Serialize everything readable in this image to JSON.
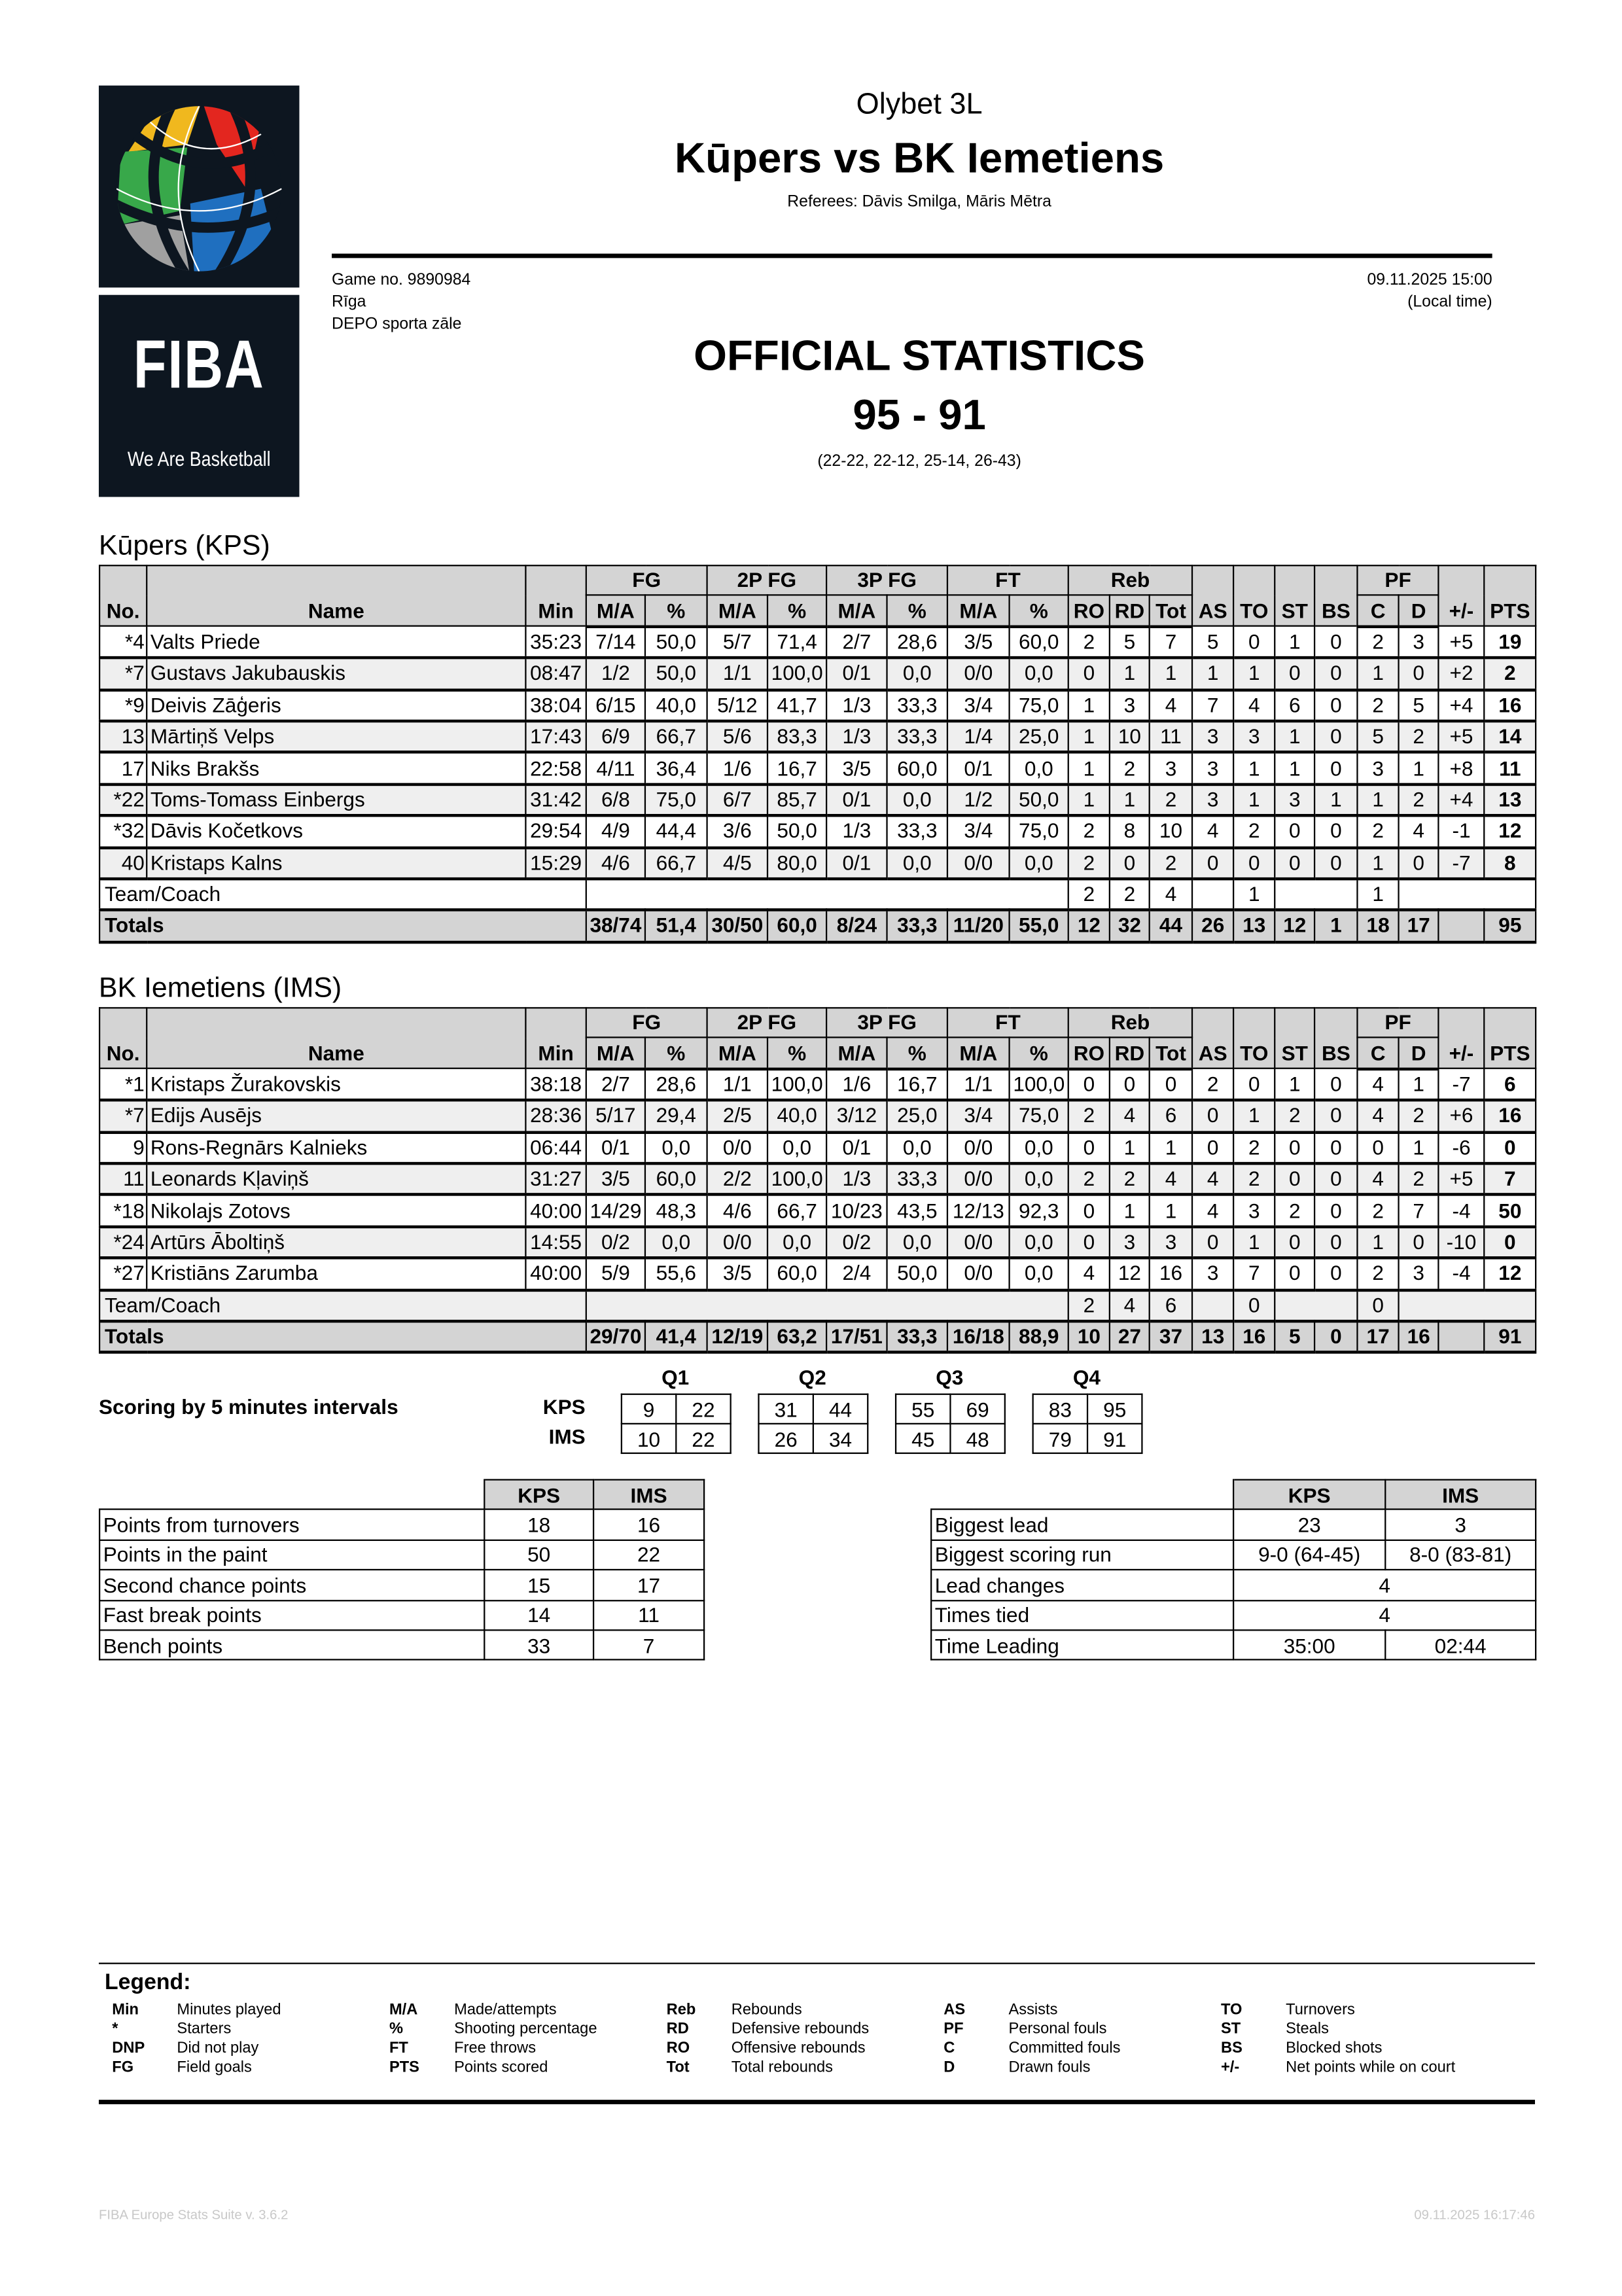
{
  "header": {
    "competition": "Olybet 3L",
    "title": "Kūpers vs BK Iemetiens",
    "referees": "Referees: Dāvis Smilga, Māris Mētra",
    "game_no": "Game no. 9890984",
    "city": "Rīga",
    "venue": "DEPO sporta zāle",
    "datetime": "09.11.2025 15:00",
    "local_time": "(Local time)",
    "doc_title": "OFFICIAL STATISTICS",
    "final_score": "95 - 91",
    "quarter_scores": "(22-22, 22-12, 25-14, 26-43)"
  },
  "logo": {
    "word": "FIBA",
    "tagline": "We Are Basketball",
    "bg": "#0d1620"
  },
  "table_header": {
    "groups": [
      "FG",
      "2P FG",
      "3P FG",
      "FT",
      "Reb",
      "PF"
    ],
    "columns": [
      "No.",
      "Name",
      "Min",
      "M/A",
      "%",
      "M/A",
      "%",
      "M/A",
      "%",
      "M/A",
      "%",
      "RO",
      "RD",
      "Tot",
      "AS",
      "TO",
      "ST",
      "BS",
      "C",
      "D",
      "+/-",
      "PTS"
    ]
  },
  "teams": [
    {
      "title": "Kūpers (KPS)",
      "players": [
        [
          "*4",
          "Valts Priede",
          "35:23",
          "7/14",
          "50,0",
          "5/7",
          "71,4",
          "2/7",
          "28,6",
          "3/5",
          "60,0",
          "2",
          "5",
          "7",
          "5",
          "0",
          "1",
          "0",
          "2",
          "3",
          "+5",
          "19"
        ],
        [
          "*7",
          "Gustavs Jakubauskis",
          "08:47",
          "1/2",
          "50,0",
          "1/1",
          "100,0",
          "0/1",
          "0,0",
          "0/0",
          "0,0",
          "0",
          "1",
          "1",
          "1",
          "1",
          "0",
          "0",
          "1",
          "0",
          "+2",
          "2"
        ],
        [
          "*9",
          "Deivis Zāģeris",
          "38:04",
          "6/15",
          "40,0",
          "5/12",
          "41,7",
          "1/3",
          "33,3",
          "3/4",
          "75,0",
          "1",
          "3",
          "4",
          "7",
          "4",
          "6",
          "0",
          "2",
          "5",
          "+4",
          "16"
        ],
        [
          "13",
          "Mārtiņš Velps",
          "17:43",
          "6/9",
          "66,7",
          "5/6",
          "83,3",
          "1/3",
          "33,3",
          "1/4",
          "25,0",
          "1",
          "10",
          "11",
          "3",
          "3",
          "1",
          "0",
          "5",
          "2",
          "+5",
          "14"
        ],
        [
          "17",
          "Niks Brakšs",
          "22:58",
          "4/11",
          "36,4",
          "1/6",
          "16,7",
          "3/5",
          "60,0",
          "0/1",
          "0,0",
          "1",
          "2",
          "3",
          "3",
          "1",
          "1",
          "0",
          "3",
          "1",
          "+8",
          "11"
        ],
        [
          "*22",
          "Toms-Tomass Einbergs",
          "31:42",
          "6/8",
          "75,0",
          "6/7",
          "85,7",
          "0/1",
          "0,0",
          "1/2",
          "50,0",
          "1",
          "1",
          "2",
          "3",
          "1",
          "3",
          "1",
          "1",
          "2",
          "+4",
          "13"
        ],
        [
          "*32",
          "Dāvis Kočetkovs",
          "29:54",
          "4/9",
          "44,4",
          "3/6",
          "50,0",
          "1/3",
          "33,3",
          "3/4",
          "75,0",
          "2",
          "8",
          "10",
          "4",
          "2",
          "0",
          "0",
          "2",
          "4",
          "-1",
          "12"
        ],
        [
          "40",
          "Kristaps Kalns",
          "15:29",
          "4/6",
          "66,7",
          "4/5",
          "80,0",
          "0/1",
          "0,0",
          "0/0",
          "0,0",
          "2",
          "0",
          "2",
          "0",
          "0",
          "0",
          "0",
          "1",
          "0",
          "-7",
          "8"
        ]
      ],
      "team_row": {
        "label": "Team/Coach",
        "ro": "2",
        "rd": "2",
        "tot": "4",
        "to": "1",
        "c": "1"
      },
      "totals": {
        "label": "Totals",
        "values": [
          "38/74",
          "51,4",
          "30/50",
          "60,0",
          "8/24",
          "33,3",
          "11/20",
          "55,0",
          "12",
          "32",
          "44",
          "26",
          "13",
          "12",
          "1",
          "18",
          "17",
          "",
          "95"
        ]
      }
    },
    {
      "title": "BK Iemetiens (IMS)",
      "players": [
        [
          "*1",
          "Kristaps Žurakovskis",
          "38:18",
          "2/7",
          "28,6",
          "1/1",
          "100,0",
          "1/6",
          "16,7",
          "1/1",
          "100,0",
          "0",
          "0",
          "0",
          "2",
          "0",
          "1",
          "0",
          "4",
          "1",
          "-7",
          "6"
        ],
        [
          "*7",
          "Edijs Ausējs",
          "28:36",
          "5/17",
          "29,4",
          "2/5",
          "40,0",
          "3/12",
          "25,0",
          "3/4",
          "75,0",
          "2",
          "4",
          "6",
          "0",
          "1",
          "2",
          "0",
          "4",
          "2",
          "+6",
          "16"
        ],
        [
          "9",
          "Rons-Regnārs Kalnieks",
          "06:44",
          "0/1",
          "0,0",
          "0/0",
          "0,0",
          "0/1",
          "0,0",
          "0/0",
          "0,0",
          "0",
          "1",
          "1",
          "0",
          "2",
          "0",
          "0",
          "0",
          "1",
          "-6",
          "0"
        ],
        [
          "11",
          "Leonards Kļaviņš",
          "31:27",
          "3/5",
          "60,0",
          "2/2",
          "100,0",
          "1/3",
          "33,3",
          "0/0",
          "0,0",
          "2",
          "2",
          "4",
          "4",
          "2",
          "0",
          "0",
          "4",
          "2",
          "+5",
          "7"
        ],
        [
          "*18",
          "Nikolajs Zotovs",
          "40:00",
          "14/29",
          "48,3",
          "4/6",
          "66,7",
          "10/23",
          "43,5",
          "12/13",
          "92,3",
          "0",
          "1",
          "1",
          "4",
          "3",
          "2",
          "0",
          "2",
          "7",
          "-4",
          "50"
        ],
        [
          "*24",
          "Artūrs Āboltiņš",
          "14:55",
          "0/2",
          "0,0",
          "0/0",
          "0,0",
          "0/2",
          "0,0",
          "0/0",
          "0,0",
          "0",
          "3",
          "3",
          "0",
          "1",
          "0",
          "0",
          "1",
          "0",
          "-10",
          "0"
        ],
        [
          "*27",
          "Kristiāns Zarumba",
          "40:00",
          "5/9",
          "55,6",
          "3/5",
          "60,0",
          "2/4",
          "50,0",
          "0/0",
          "0,0",
          "4",
          "12",
          "16",
          "3",
          "7",
          "0",
          "0",
          "2",
          "3",
          "-4",
          "12"
        ]
      ],
      "team_row": {
        "label": "Team/Coach",
        "ro": "2",
        "rd": "4",
        "tot": "6",
        "to": "0",
        "c": "0"
      },
      "totals": {
        "label": "Totals",
        "values": [
          "29/70",
          "41,4",
          "12/19",
          "63,2",
          "17/51",
          "33,3",
          "16/18",
          "88,9",
          "10",
          "27",
          "37",
          "13",
          "16",
          "5",
          "0",
          "17",
          "16",
          "",
          "91"
        ]
      }
    }
  ],
  "scoring": {
    "label": "Scoring by 5 minutes intervals",
    "quarters": [
      "Q1",
      "Q2",
      "Q3",
      "Q4"
    ],
    "teams": [
      {
        "code": "KPS",
        "values": [
          "9",
          "22",
          "31",
          "44",
          "55",
          "69",
          "83",
          "95"
        ]
      },
      {
        "code": "IMS",
        "values": [
          "10",
          "22",
          "26",
          "34",
          "45",
          "48",
          "79",
          "91"
        ]
      }
    ]
  },
  "points_table": {
    "headers": [
      "KPS",
      "IMS"
    ],
    "rows": [
      [
        "Points from turnovers",
        "18",
        "16"
      ],
      [
        "Points in the paint",
        "50",
        "22"
      ],
      [
        "Second chance points",
        "15",
        "17"
      ],
      [
        "Fast break points",
        "14",
        "11"
      ],
      [
        "Bench points",
        "33",
        "7"
      ]
    ]
  },
  "lead_table": {
    "headers": [
      "KPS",
      "IMS"
    ],
    "rows": [
      [
        "Biggest lead",
        "23",
        "3"
      ],
      [
        "Biggest scoring run",
        "9-0 (64-45)",
        "8-0 (83-81)"
      ],
      [
        "Lead changes",
        "4"
      ],
      [
        "Times tied",
        "4"
      ],
      [
        "Time Leading",
        "35:00",
        "02:44"
      ]
    ]
  },
  "legend": {
    "title": "Legend:",
    "columns": [
      [
        [
          "Min",
          "Minutes played"
        ],
        [
          "*",
          "Starters"
        ],
        [
          "DNP",
          "Did not play"
        ],
        [
          "FG",
          "Field goals"
        ]
      ],
      [
        [
          "M/A",
          "Made/attempts"
        ],
        [
          "%",
          "Shooting percentage"
        ],
        [
          "FT",
          "Free throws"
        ],
        [
          "PTS",
          "Points scored"
        ]
      ],
      [
        [
          "Reb",
          "Rebounds"
        ],
        [
          "RD",
          "Defensive rebounds"
        ],
        [
          "RO",
          "Offensive rebounds"
        ],
        [
          "Tot",
          "Total rebounds"
        ]
      ],
      [
        [
          "AS",
          "Assists"
        ],
        [
          "PF",
          "Personal fouls"
        ],
        [
          "C",
          "Committed fouls"
        ],
        [
          "D",
          "Drawn fouls"
        ]
      ],
      [
        [
          "TO",
          "Turnovers"
        ],
        [
          "ST",
          "Steals"
        ],
        [
          "BS",
          "Blocked shots"
        ],
        [
          "+/-",
          "Net points while on court"
        ]
      ]
    ]
  },
  "footer": {
    "software": "FIBA Europe Stats Suite v. 3.6.2",
    "printed": "09.11.2025 16:17:46"
  }
}
